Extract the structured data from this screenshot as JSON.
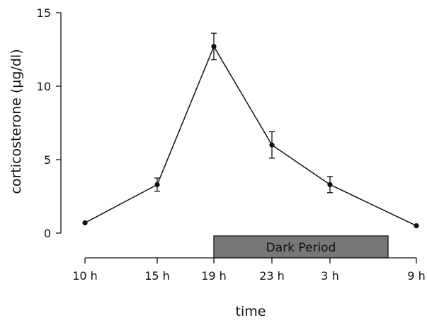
{
  "chart_data": {
    "type": "line",
    "xlabel": "time",
    "ylabel": "corticosterone (µg/dl)",
    "ylim": [
      0,
      15
    ],
    "y_ticks": [
      "0",
      "5",
      "10",
      "15"
    ],
    "x_ticks": [
      "10 h",
      "15 h",
      "19 h",
      "23 h",
      "3 h",
      "9 h"
    ],
    "grid": false,
    "series": [
      {
        "points": [
          {
            "x": "10 h",
            "y": 0.7,
            "err": 0.0
          },
          {
            "x": "15 h",
            "y": 3.3,
            "err": 0.45
          },
          {
            "x": "19 h",
            "y": 12.7,
            "err": 0.9
          },
          {
            "x": "23 h",
            "y": 6.0,
            "err": 0.9
          },
          {
            "x": "3 h",
            "y": 3.3,
            "err": 0.55
          },
          {
            "x": "9 h",
            "y": 0.5,
            "err": 0.0
          }
        ]
      }
    ],
    "annotation": {
      "text": "Dark Period",
      "from": "19 h",
      "to_hour": 7,
      "color": "#777777"
    }
  }
}
